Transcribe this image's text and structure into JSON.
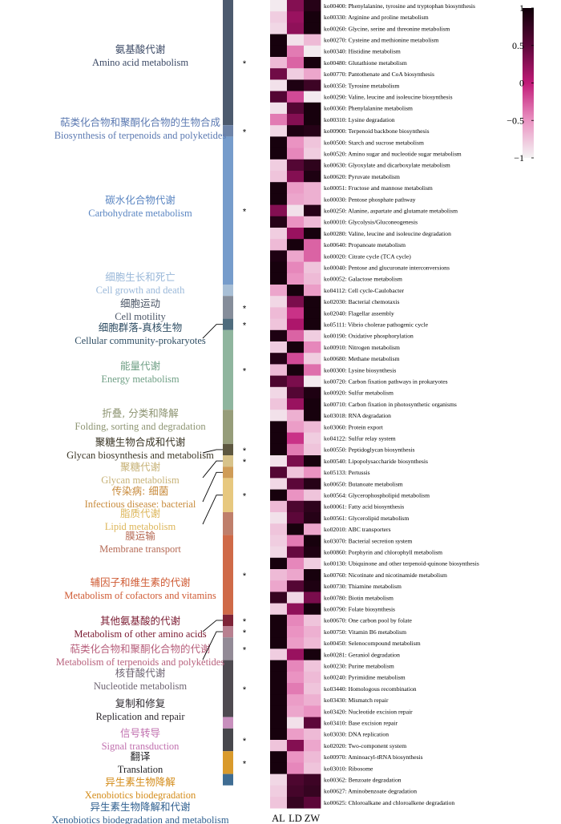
{
  "chart_data": {
    "type": "heatmap",
    "columns": [
      "AL",
      "LD",
      "ZW"
    ],
    "colorbar": {
      "min": -1,
      "max": 1,
      "ticks": [
        "1",
        "0.5",
        "0",
        "−0.5",
        "−1"
      ],
      "colors": [
        "#f4f4f4",
        "#ea93c2",
        "#c11a78",
        "#5c0739",
        "#0f0008"
      ]
    },
    "rows": [
      {
        "label": "ko00400: Phenylalanine, tyrosine and tryptophan biosynthesis",
        "values": [
          -0.95,
          0.3,
          0.85
        ]
      },
      {
        "label": "ko00330: Arginine and proline metabolism",
        "values": [
          -0.8,
          0.2,
          0.95
        ]
      },
      {
        "label": "ko00260: Glycine, serine and threonine metabolism",
        "values": [
          -0.85,
          0.25,
          0.95
        ]
      },
      {
        "label": "ko00270: Cysteine and methionine metabolism",
        "values": [
          0.95,
          -0.9,
          -0.7
        ]
      },
      {
        "label": "ko00340: Histidine metabolism",
        "values": [
          0.95,
          -0.4,
          -0.95
        ]
      },
      {
        "label": "ko00480: Glutathione metabolism",
        "values": [
          -0.7,
          -0.3,
          0.95
        ]
      },
      {
        "label": "ko00770: Pantothenate and CoA biosynthesis",
        "values": [
          0.4,
          -0.8,
          -0.6
        ]
      },
      {
        "label": "ko00350: Tyrosine metabolism",
        "values": [
          -0.9,
          0.9,
          0.7
        ]
      },
      {
        "label": "ko00290: Valine, leucine and isoleucine biosynthesis",
        "values": [
          0.55,
          -0.2,
          -0.95
        ]
      },
      {
        "label": "ko00360: Phenylalanine metabolism",
        "values": [
          -0.9,
          0.55,
          0.95
        ]
      },
      {
        "label": "ko00310: Lysine degradation",
        "values": [
          -0.4,
          0.3,
          0.95
        ]
      },
      {
        "label": "ko00900: Terpenoid backbone biosynthesis",
        "values": [
          -0.85,
          0.9,
          0.85
        ]
      },
      {
        "label": "ko00500: Starch and sucrose metabolism",
        "values": [
          0.95,
          -0.5,
          -0.75
        ]
      },
      {
        "label": "ko00520: Amino sugar and nucleotide sugar metabolism",
        "values": [
          0.95,
          -0.45,
          -0.8
        ]
      },
      {
        "label": "ko00630: Glyoxylate and dicarboxylate metabolism",
        "values": [
          -0.8,
          0.55,
          0.8
        ]
      },
      {
        "label": "ko00620: Pyruvate metabolism",
        "values": [
          -0.75,
          0.3,
          0.9
        ]
      },
      {
        "label": "ko00051: Fructose and mannose metabolism",
        "values": [
          0.95,
          -0.55,
          -0.65
        ]
      },
      {
        "label": "ko00030: Pentose phosphate pathway",
        "values": [
          0.95,
          -0.6,
          -0.65
        ]
      },
      {
        "label": "ko00250: Alanine, aspartate and glutamate metabolism",
        "values": [
          0.3,
          -0.9,
          0.85
        ]
      },
      {
        "label": "ko00010: Glycolysis/Gluconeogenesis",
        "values": [
          0.85,
          -0.5,
          -0.7
        ]
      },
      {
        "label": "ko00280: Valine, leucine and isoleucine degradation",
        "values": [
          -0.8,
          0.2,
          0.95
        ]
      },
      {
        "label": "ko00640: Propanoate metabolism",
        "values": [
          -0.7,
          0.95,
          -0.3
        ]
      },
      {
        "label": "ko00020: Citrate cycle (TCA cycle)",
        "values": [
          0.9,
          -0.6,
          -0.3
        ]
      },
      {
        "label": "ko00040: Pentose and glucuronate interconversions",
        "values": [
          0.95,
          -0.45,
          -0.75
        ]
      },
      {
        "label": "ko00052: Galactose metabolism",
        "values": [
          0.95,
          -0.5,
          -0.7
        ]
      },
      {
        "label": "ko04112: Cell cycle-Caulobacter",
        "values": [
          -0.6,
          0.95,
          -0.55
        ]
      },
      {
        "label": "ko02030: Bacterial chemotaxis",
        "values": [
          -0.85,
          0.35,
          0.95
        ]
      },
      {
        "label": "ko02040: Flagellar assembly",
        "values": [
          -0.7,
          -0.1,
          0.95
        ]
      },
      {
        "label": "ko05111: Vibrio cholerae pathogenic cycle",
        "values": [
          -0.75,
          0.1,
          0.95
        ]
      },
      {
        "label": "ko00190: Oxidative phosphorylation",
        "values": [
          0.9,
          -0.3,
          -0.8
        ]
      },
      {
        "label": "ko00910: Nitrogen metabolism",
        "values": [
          -0.8,
          0.95,
          -0.45
        ]
      },
      {
        "label": "ko00680: Methane metabolism",
        "values": [
          0.85,
          -0.2,
          -0.8
        ]
      },
      {
        "label": "ko00300: Lysine biosynthesis",
        "values": [
          -0.7,
          0.95,
          -0.35
        ]
      },
      {
        "label": "ko00720: Carbon fixation pathways in prokaryotes",
        "values": [
          0.6,
          0.35,
          -0.95
        ]
      },
      {
        "label": "ko00920: Sulfur metabolism",
        "values": [
          -0.85,
          0.55,
          0.9
        ]
      },
      {
        "label": "ko00710: Carbon fixation in photosynthetic organisms",
        "values": [
          -0.75,
          0.2,
          0.95
        ]
      },
      {
        "label": "ko03018: RNA degradation",
        "values": [
          -0.9,
          -0.65,
          0.95
        ]
      },
      {
        "label": "ko03060: Protein export",
        "values": [
          0.95,
          -0.55,
          -0.7
        ]
      },
      {
        "label": "ko04122: Sulfur relay system",
        "values": [
          0.95,
          -0.1,
          -0.8
        ]
      },
      {
        "label": "ko00550: Peptidoglycan biosynthesis",
        "values": [
          0.95,
          -0.4,
          -0.75
        ]
      },
      {
        "label": "ko00540: Lipopolysaccharide biosynthesis",
        "values": [
          -0.9,
          0.35,
          0.95
        ]
      },
      {
        "label": "ko05133: Pertussis",
        "values": [
          0.55,
          -0.75,
          -0.5
        ]
      },
      {
        "label": "ko00650: Butanoate metabolism",
        "values": [
          -0.85,
          0.5,
          0.85
        ]
      },
      {
        "label": "ko00564: Glycerophospholipid metabolism",
        "values": [
          0.95,
          -0.5,
          -0.75
        ]
      },
      {
        "label": "ko00061: Fatty acid biosynthesis",
        "values": [
          -0.7,
          0.6,
          0.8
        ]
      },
      {
        "label": "ko00561: Glycerolipid metabolism",
        "values": [
          -0.9,
          0.5,
          0.85
        ]
      },
      {
        "label": "ko02010: ABC transporters",
        "values": [
          -0.75,
          0.95,
          -0.6
        ]
      },
      {
        "label": "ko03070: Bacterial secretion system",
        "values": [
          -0.8,
          -0.4,
          0.95
        ]
      },
      {
        "label": "ko00860: Porphyrin and chlorophyll metabolism",
        "values": [
          -0.85,
          0.45,
          0.9
        ]
      },
      {
        "label": "ko00130: Ubiquinone and other terpenoid-quinone biosynthesis",
        "values": [
          0.95,
          -0.45,
          -0.8
        ]
      },
      {
        "label": "ko00760: Nicotinate and nicotinamide metabolism",
        "values": [
          -0.7,
          -0.6,
          0.95
        ]
      },
      {
        "label": "ko00730: Thiamine metabolism",
        "values": [
          -0.6,
          0.55,
          0.9
        ]
      },
      {
        "label": "ko00780: Biotin metabolism",
        "values": [
          0.75,
          -0.85,
          0.35
        ]
      },
      {
        "label": "ko00790: Folate biosynthesis",
        "values": [
          -0.8,
          0.25,
          0.95
        ]
      },
      {
        "label": "ko00670: One carbon pool by folate",
        "values": [
          0.95,
          -0.45,
          -0.75
        ]
      },
      {
        "label": "ko00750: Vitamin B6 metabolism",
        "values": [
          0.95,
          -0.5,
          -0.65
        ]
      },
      {
        "label": "ko00450: Selenocompound metabolism",
        "values": [
          0.95,
          -0.55,
          -0.7
        ]
      },
      {
        "label": "ko00281: Geraniol degradation",
        "values": [
          -0.8,
          0.2,
          0.95
        ]
      },
      {
        "label": "ko00230: Purine metabolism",
        "values": [
          0.95,
          -0.45,
          -0.75
        ]
      },
      {
        "label": "ko00240: Pyrimidine metabolism",
        "values": [
          0.95,
          -0.5,
          -0.7
        ]
      },
      {
        "label": "ko03440: Homologous recombination",
        "values": [
          0.95,
          -0.4,
          -0.75
        ]
      },
      {
        "label": "ko03430: Mismatch repair",
        "values": [
          0.95,
          -0.55,
          -0.65
        ]
      },
      {
        "label": "ko03420: Nucleotide excision repair",
        "values": [
          0.95,
          -0.6,
          -0.5
        ]
      },
      {
        "label": "ko03410: Base excision repair",
        "values": [
          0.95,
          -0.9,
          0.5
        ]
      },
      {
        "label": "ko03030: DNA replication",
        "values": [
          0.95,
          -0.55,
          -0.7
        ]
      },
      {
        "label": "ko02020: Two-component system",
        "values": [
          -0.75,
          0.3,
          -0.6
        ]
      },
      {
        "label": "ko00970: Aminoacyl-tRNA biosynthesis",
        "values": [
          0.95,
          -0.5,
          -0.7
        ]
      },
      {
        "label": "ko03010: Ribosome",
        "values": [
          0.95,
          -0.45,
          -0.75
        ]
      },
      {
        "label": "ko00362: Benzoate degradation",
        "values": [
          -0.85,
          0.6,
          0.7
        ]
      },
      {
        "label": "ko00627: Aminobenzoate degradation",
        "values": [
          -0.8,
          0.65,
          0.75
        ]
      },
      {
        "label": "ko00625: Chloroalkane and chloroalkene degradation",
        "values": [
          -0.75,
          0.75,
          0.5
        ]
      }
    ],
    "categories": [
      {
        "cn": "氨基酸代谢",
        "en": "Amino acid metabolism",
        "start": 0,
        "end": 11,
        "color": "#4c5a6e",
        "text_color": "#3c4a66",
        "star": true
      },
      {
        "cn": "萜类化合物和聚酮化合物的生物合成",
        "en": "Biosynthesis of terpenoids and polyketides",
        "start": 11,
        "end": 12,
        "color": "#6d83a8",
        "text_color": "#5b79b1",
        "star": true
      },
      {
        "cn": "碳水化合物代谢",
        "en": "Carbohydrate metabolism",
        "start": 12,
        "end": 25,
        "color": "#769ccb",
        "text_color": "#5b86c2",
        "star": true
      },
      {
        "cn": "细胞生长和死亡",
        "en": "Cell growth and death",
        "start": 25,
        "end": 26,
        "color": "#a8bfd6",
        "text_color": "#9ab8d9",
        "star": false
      },
      {
        "cn": "细胞运动",
        "en": "Cell motility",
        "start": 26,
        "end": 28,
        "color": "#858d9a",
        "text_color": "#4a5566",
        "star": true
      },
      {
        "cn": "细胞群落-真核生物",
        "en": "Cellular community-prokaryotes",
        "start": 28,
        "end": 29,
        "color": "#4f6c7d",
        "text_color": "#2e4d63",
        "star": true
      },
      {
        "cn": "能量代谢",
        "en": "Energy metabolism",
        "start": 29,
        "end": 36,
        "color": "#8fb59e",
        "text_color": "#6f9f85",
        "star": true
      },
      {
        "cn": "折叠, 分类和降解",
        "en": "Folding, sorting and degradation",
        "start": 36,
        "end": 39,
        "color": "#969d7a",
        "text_color": "#8d9472",
        "star": false
      },
      {
        "cn": "聚糖生物合成和代谢",
        "en": "Glycan biosynthesis and metabolism",
        "start": 39,
        "end": 40,
        "color": "#5d5740",
        "text_color": "#3a3525",
        "star": true
      },
      {
        "cn": "聚糖代谢",
        "en": "Glycan metabolism",
        "start": 40,
        "end": 41,
        "color": "#d8c38a",
        "text_color": "#c7b277",
        "star": true
      },
      {
        "cn": "传染病: 细菌",
        "en": "Infectious disease: bacterial",
        "start": 41,
        "end": 42,
        "color": "#cf9c57",
        "text_color": "#c88b3d",
        "star": false
      },
      {
        "cn": "脂质代谢",
        "en": "Lipid metabolism",
        "start": 42,
        "end": 45,
        "color": "#e7c87f",
        "text_color": "#ddb65a",
        "star": true
      },
      {
        "cn": "膜运输",
        "en": "Membrane transport",
        "start": 45,
        "end": 47,
        "color": "#bf7f6b",
        "text_color": "#b56a55",
        "star": false
      },
      {
        "cn": "辅因子和维生素的代谢",
        "en": "Metabolism of cofactors and vitamins",
        "start": 47,
        "end": 54,
        "color": "#cf6a48",
        "text_color": "#cf5a33",
        "star": true
      },
      {
        "cn": "其他氨基酸的代谢",
        "en": "Metabolism of other amino acids",
        "start": 54,
        "end": 55,
        "color": "#7e2337",
        "text_color": "#7a1a30",
        "star": true
      },
      {
        "cn": "萜类化合物和聚酮化合物的代谢",
        "en": "Metabolism of terpenoids and polyketides",
        "start": 55,
        "end": 56,
        "color": "#b88090",
        "text_color": "#b8617d",
        "star": true
      },
      {
        "cn": "核苷酸代谢",
        "en": "Nucleotide metabolism",
        "start": 56,
        "end": 58,
        "color": "#928a96",
        "text_color": "#6e6472",
        "star": true
      },
      {
        "cn": "复制和修复",
        "en": "Replication and repair",
        "start": 58,
        "end": 63,
        "color": "#4e4a50",
        "text_color": "#2d292f",
        "star": true
      },
      {
        "cn": "信号转导",
        "en": "Signal transduction",
        "start": 63,
        "end": 64,
        "color": "#c88fbd",
        "text_color": "#c06fae",
        "star": false
      },
      {
        "cn": "翻译",
        "en": "Translation",
        "start": 64,
        "end": 66,
        "color": "#47474c",
        "text_color": "#1f1f22",
        "star": true
      },
      {
        "cn": "异生素生物降解",
        "en": "Xenobiotics biodegradation",
        "start": 66,
        "end": 68,
        "color": "#d99a2b",
        "text_color": "#d48c1a",
        "star": true
      },
      {
        "cn": "异生素生物降解和代谢",
        "en": "Xenobiotics biodegradation and metabolism",
        "start": 68,
        "end": 69,
        "color": "#3f6d93",
        "text_color": "#2f5f8f",
        "star": false
      }
    ]
  }
}
